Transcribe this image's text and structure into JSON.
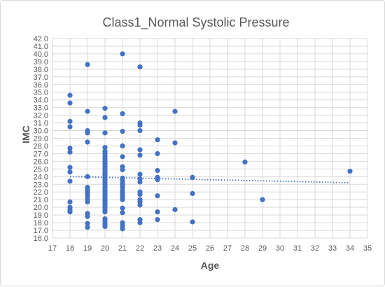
{
  "chart_data": {
    "type": "scatter",
    "title": "Class1_Normal Systolic Pressure",
    "xlabel": "Age",
    "ylabel": "IMC",
    "xlim": [
      17,
      35
    ],
    "ylim": [
      16.0,
      42.0
    ],
    "x_ticks": [
      "17",
      "18",
      "19",
      "20",
      "21",
      "22",
      "23",
      "24",
      "25",
      "26",
      "27",
      "28",
      "29",
      "30",
      "31",
      "32",
      "33",
      "34",
      "35"
    ],
    "y_ticks": [
      "16.0",
      "17.0",
      "18.0",
      "19.0",
      "20.0",
      "21.0",
      "22.0",
      "23.0",
      "24.0",
      "25.0",
      "26.0",
      "27.0",
      "28.0",
      "29.0",
      "30.0",
      "31.0",
      "32.0",
      "33.0",
      "34.0",
      "35.0",
      "36.0",
      "37.0",
      "38.0",
      "39.0",
      "40.0",
      "41.0",
      "42.0"
    ],
    "grid": true,
    "marker_color": "#4472c4",
    "series": [
      {
        "points": [
          [
            18,
            34.6
          ],
          [
            18,
            33.6
          ],
          [
            18,
            31.2
          ],
          [
            18,
            30.5
          ],
          [
            18,
            27.7
          ],
          [
            18,
            27.2
          ],
          [
            18,
            25.2
          ],
          [
            18,
            24.6
          ],
          [
            18,
            23.4
          ],
          [
            18,
            20.7
          ],
          [
            18,
            20.0
          ],
          [
            18,
            19.7
          ],
          [
            18,
            19.4
          ],
          [
            19,
            38.6
          ],
          [
            19,
            32.5
          ],
          [
            19,
            30.0
          ],
          [
            19,
            29.7
          ],
          [
            19,
            28.5
          ],
          [
            19,
            24.0
          ],
          [
            19,
            22.6
          ],
          [
            19,
            22.3
          ],
          [
            19,
            22.0
          ],
          [
            19,
            21.7
          ],
          [
            19,
            21.4
          ],
          [
            19,
            21.0
          ],
          [
            19,
            20.7
          ],
          [
            19,
            19.2
          ],
          [
            19,
            18.8
          ],
          [
            19,
            17.9
          ],
          [
            19,
            17.4
          ],
          [
            20,
            32.9
          ],
          [
            20,
            31.7
          ],
          [
            20,
            29.7
          ],
          [
            20,
            27.8
          ],
          [
            20,
            27.3
          ],
          [
            20,
            27.0
          ],
          [
            20,
            26.6
          ],
          [
            20,
            26.3
          ],
          [
            20,
            26.0
          ],
          [
            20,
            25.7
          ],
          [
            20,
            25.4
          ],
          [
            20,
            25.1
          ],
          [
            20,
            24.8
          ],
          [
            20,
            24.5
          ],
          [
            20,
            24.2
          ],
          [
            20,
            23.9
          ],
          [
            20,
            23.6
          ],
          [
            20,
            23.3
          ],
          [
            20,
            23.0
          ],
          [
            20,
            22.7
          ],
          [
            20,
            22.4
          ],
          [
            20,
            22.1
          ],
          [
            20,
            21.8
          ],
          [
            20,
            21.5
          ],
          [
            20,
            21.2
          ],
          [
            20,
            20.9
          ],
          [
            20,
            20.6
          ],
          [
            20,
            20.3
          ],
          [
            20,
            20.0
          ],
          [
            20,
            19.7
          ],
          [
            20,
            19.4
          ],
          [
            20,
            18.5
          ],
          [
            20,
            18.2
          ],
          [
            20,
            17.8
          ],
          [
            20,
            17.5
          ],
          [
            21,
            40.0
          ],
          [
            21,
            32.2
          ],
          [
            21,
            29.9
          ],
          [
            21,
            28.0
          ],
          [
            21,
            26.6
          ],
          [
            21,
            25.3
          ],
          [
            21,
            24.9
          ],
          [
            21,
            23.8
          ],
          [
            21,
            23.5
          ],
          [
            21,
            23.2
          ],
          [
            21,
            22.9
          ],
          [
            21,
            22.6
          ],
          [
            21,
            22.2
          ],
          [
            21,
            21.9
          ],
          [
            21,
            21.6
          ],
          [
            21,
            21.3
          ],
          [
            21,
            21.0
          ],
          [
            21,
            19.9
          ],
          [
            21,
            19.3
          ],
          [
            21,
            18.0
          ],
          [
            21,
            17.6
          ],
          [
            21,
            17.2
          ],
          [
            22,
            38.3
          ],
          [
            22,
            31.0
          ],
          [
            22,
            30.7
          ],
          [
            22,
            30.0
          ],
          [
            22,
            27.5
          ],
          [
            22,
            26.8
          ],
          [
            22,
            24.3
          ],
          [
            22,
            23.7
          ],
          [
            22,
            23.3
          ],
          [
            22,
            22.0
          ],
          [
            22,
            21.7
          ],
          [
            22,
            21.0
          ],
          [
            22,
            20.7
          ],
          [
            22,
            20.3
          ],
          [
            22,
            18.4
          ],
          [
            22,
            18.0
          ],
          [
            23,
            28.8
          ],
          [
            23,
            27.0
          ],
          [
            23,
            24.8
          ],
          [
            23,
            23.9
          ],
          [
            23,
            23.6
          ],
          [
            23,
            21.5
          ],
          [
            23,
            19.4
          ],
          [
            23,
            18.4
          ],
          [
            24,
            32.5
          ],
          [
            24,
            28.4
          ],
          [
            24,
            19.7
          ],
          [
            25,
            23.9
          ],
          [
            25,
            21.8
          ],
          [
            25,
            18.1
          ],
          [
            28,
            25.9
          ],
          [
            29,
            21.0
          ],
          [
            34,
            24.7
          ]
        ]
      }
    ],
    "trendline": {
      "type": "linear",
      "style": "dotted",
      "x_range": [
        18,
        34
      ],
      "y_start": 24.0,
      "y_end": 23.2
    }
  }
}
